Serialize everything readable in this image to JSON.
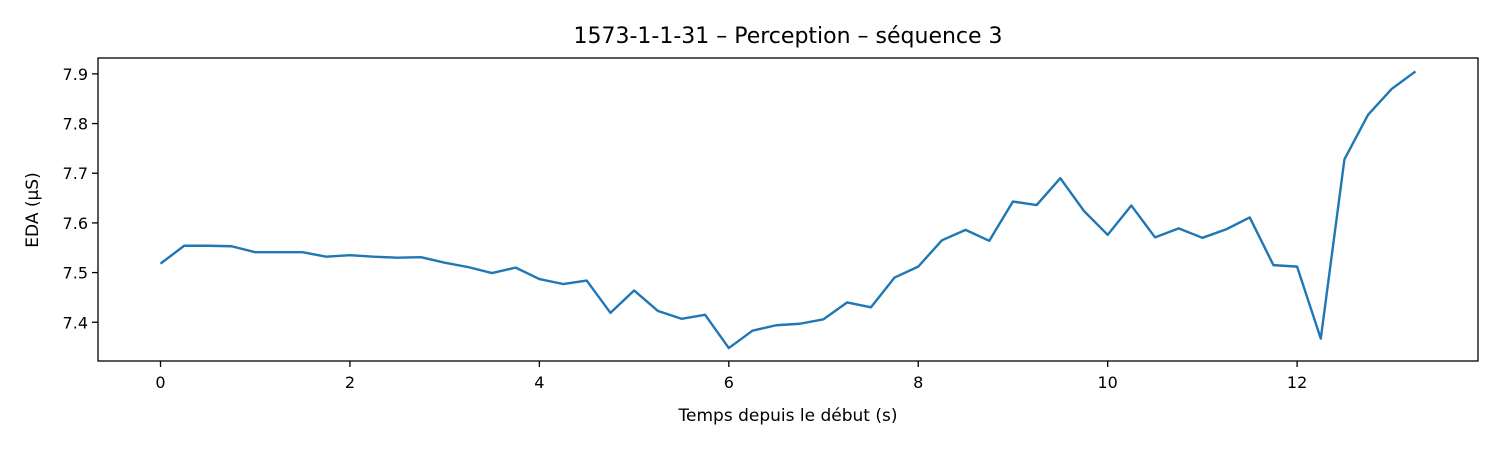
{
  "chart_data": {
    "type": "line",
    "title": "1573-1-1-31 – Perception – séquence 3",
    "xlabel": "Temps depuis le début (s)",
    "ylabel": "EDA (µS)",
    "xlim": [
      -0.66,
      13.91
    ],
    "ylim": [
      7.322,
      7.932
    ],
    "xticks": [
      0,
      2,
      4,
      6,
      8,
      10,
      12
    ],
    "yticks": [
      7.4,
      7.5,
      7.6,
      7.7,
      7.8,
      7.9
    ],
    "grid": false,
    "color": "#1f77b4",
    "series": [
      {
        "x": [
          0,
          0.25,
          0.5,
          0.75,
          1.0,
          1.25,
          1.5,
          1.75,
          2.0,
          2.25,
          2.5,
          2.75,
          3.0,
          3.25,
          3.5,
          3.75,
          4.0,
          4.25,
          4.5,
          4.75,
          5.0,
          5.25,
          5.5,
          5.75,
          6.0,
          6.25,
          6.5,
          6.75,
          7.0,
          7.25,
          7.5,
          7.75,
          8.0,
          8.25,
          8.5,
          8.75,
          9.0,
          9.25,
          9.5,
          9.75,
          10.0,
          10.25,
          10.5,
          10.75,
          11.0,
          11.25,
          11.5,
          11.75,
          12.0,
          12.25,
          12.5,
          12.75,
          13.0,
          13.25
        ],
        "values": [
          7.518,
          7.554,
          7.554,
          7.553,
          7.541,
          7.541,
          7.541,
          7.532,
          7.535,
          7.532,
          7.53,
          7.531,
          7.52,
          7.511,
          7.499,
          7.51,
          7.487,
          7.477,
          7.484,
          7.419,
          7.464,
          7.423,
          7.407,
          7.415,
          7.348,
          7.383,
          7.394,
          7.397,
          7.406,
          7.44,
          7.43,
          7.49,
          7.512,
          7.565,
          7.586,
          7.564,
          7.643,
          7.636,
          7.69,
          7.624,
          7.576,
          7.635,
          7.571,
          7.589,
          7.57,
          7.587,
          7.611,
          7.515,
          7.512,
          7.367,
          7.728,
          7.818,
          7.87,
          7.905
        ]
      }
    ]
  }
}
